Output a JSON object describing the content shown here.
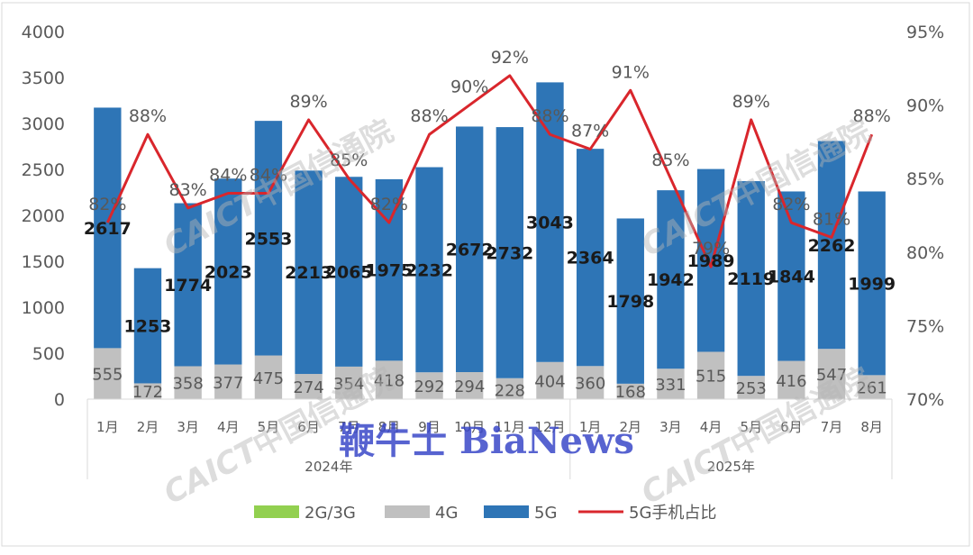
{
  "chart_data": {
    "type": "bar",
    "stacked": true,
    "categories": [
      "1月",
      "2月",
      "3月",
      "4月",
      "5月",
      "6月",
      "7月",
      "8月",
      "9月",
      "10月",
      "11月",
      "12月",
      "1月",
      "2月",
      "3月",
      "4月",
      "5月",
      "6月",
      "7月",
      "8月"
    ],
    "groups": [
      {
        "label": "2024年",
        "count": 12
      },
      {
        "label": "2025年",
        "count": 8
      }
    ],
    "series": [
      {
        "name": "2G/3G",
        "kind": "bar",
        "color": "#92d050",
        "values": [
          0,
          0,
          0,
          0,
          0,
          0,
          0,
          0,
          0,
          0,
          0,
          0,
          0,
          0,
          0,
          0,
          0,
          0,
          0,
          0
        ]
      },
      {
        "name": "4G",
        "kind": "bar",
        "color": "#c0c0c0",
        "values": [
          555,
          172,
          358,
          377,
          475,
          274,
          354,
          418,
          292,
          294,
          228,
          404,
          360,
          168,
          331,
          515,
          253,
          416,
          547,
          261
        ]
      },
      {
        "name": "5G",
        "kind": "bar",
        "color": "#2e75b6",
        "values": [
          2617,
          1253,
          1774,
          2023,
          2553,
          2213,
          2065,
          1975,
          2232,
          2672,
          2732,
          3043,
          2364,
          1798,
          1942,
          1989,
          2119,
          1844,
          2262,
          1999
        ]
      },
      {
        "name": "5G手机占比",
        "kind": "line",
        "axis": "right",
        "color": "#d9262c",
        "values": [
          82,
          88,
          83,
          84,
          84,
          89,
          85,
          82,
          88,
          90,
          92,
          88,
          87,
          91,
          85,
          79,
          89,
          82,
          81,
          88
        ]
      }
    ],
    "data_labels": {
      "4G": [
        "555",
        "172",
        "358",
        "377",
        "475",
        "274",
        "354",
        "418",
        "292",
        "294",
        "228",
        "404",
        "360",
        "168",
        "331",
        "515",
        "253",
        "416",
        "547",
        "261"
      ],
      "5G": [
        "2617",
        "1253",
        "1774",
        "2023",
        "2553",
        "2213",
        "2065",
        "1975",
        "2232",
        "2672",
        "2732",
        "3043",
        "2364",
        "1798",
        "1942",
        "1989",
        "2119",
        "1844",
        "2262",
        "1999"
      ],
      "share": [
        "82%",
        "88%",
        "83%",
        "84%",
        "84%",
        "89%",
        "85%",
        "82%",
        "88%",
        "90%",
        "92%",
        "88%",
        "87%",
        "91%",
        "85%",
        "79%",
        "89%",
        "82%",
        "81%",
        "88%"
      ]
    },
    "y_left": {
      "ticks": [
        "0",
        "500",
        "1000",
        "1500",
        "2000",
        "2500",
        "3000",
        "3500",
        "4000"
      ],
      "min": 0,
      "max": 4000
    },
    "y_right": {
      "ticks": [
        "70%",
        "75%",
        "80%",
        "85%",
        "90%",
        "95%"
      ],
      "min": 70,
      "max": 95
    },
    "legend": {
      "position": "bottom",
      "items": [
        "2G/3G",
        "4G",
        "5G",
        "5G手机占比"
      ]
    },
    "grid": false
  },
  "watermarks": {
    "caict_en": "CAICT",
    "caict_cn": "中国信通院",
    "bianews": "鞭牛士 BiaNews"
  }
}
